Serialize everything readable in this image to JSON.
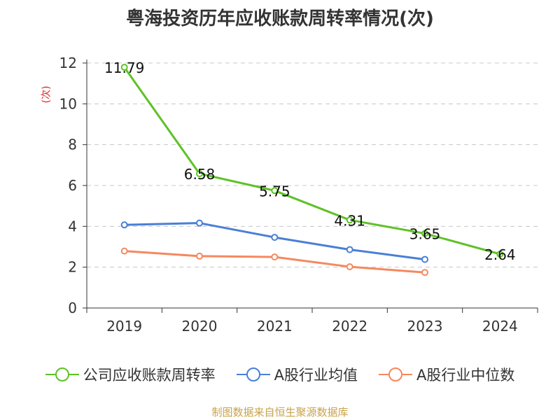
{
  "title": "粤海投资历年应收账款周转率情况(次)",
  "footer": "制图数据来自恒生聚源数据库",
  "chart_data": {
    "type": "line",
    "title": "粤海投资历年应收账款周转率情况(次)",
    "ylabel": "(次)",
    "xlabel": "",
    "categories": [
      "2019",
      "2020",
      "2021",
      "2022",
      "2023",
      "2024"
    ],
    "ylim": [
      0,
      12
    ],
    "yticks": [
      0,
      2,
      4,
      6,
      8,
      10,
      12
    ],
    "grid": true,
    "legend_position": "bottom",
    "series": [
      {
        "name": "公司应收账款周转率",
        "color": "#5ec226",
        "values": [
          11.79,
          6.58,
          5.75,
          4.31,
          3.65,
          2.64
        ],
        "labels": [
          "11.79",
          "6.58",
          "5.75",
          "4.31",
          "3.65",
          "2.64"
        ]
      },
      {
        "name": "A股行业均值",
        "color": "#4a7fd6",
        "values": [
          4.07,
          4.16,
          3.46,
          2.86,
          2.38,
          null
        ]
      },
      {
        "name": "A股行业中位数",
        "color": "#f4895f",
        "values": [
          2.79,
          2.54,
          2.5,
          2.02,
          1.74,
          null
        ]
      }
    ]
  }
}
